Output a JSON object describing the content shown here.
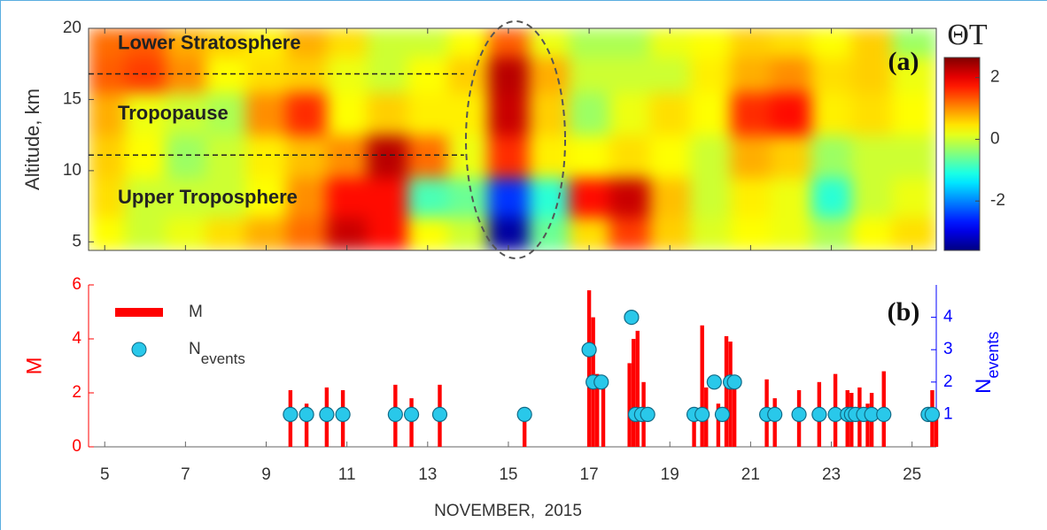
{
  "chart_data": [
    {
      "type": "heatmap",
      "ylabel": "Altitude, km",
      "colorbar_title": "ΘT",
      "panel_label": "(a)",
      "annotations": [
        "Lower Stratosphere",
        "Tropopause",
        "Upper Troposphere"
      ],
      "boundaries": [
        16.8,
        11.1
      ],
      "boundary_xlim": [
        4.6,
        13.9
      ],
      "xlim": [
        4.6,
        25.6
      ],
      "xticks": [
        5,
        7,
        9,
        11,
        13,
        15,
        17,
        19,
        21,
        23,
        25
      ],
      "ylim": [
        4.4,
        20
      ],
      "yticks": [
        5,
        10,
        15,
        20
      ],
      "clim": [
        -3.6,
        2.65
      ],
      "cticks": [
        -2,
        0,
        2
      ],
      "colormap": "jet",
      "x": [
        5,
        6,
        7,
        8,
        9,
        10,
        11,
        12,
        13,
        14,
        15,
        16,
        17,
        18,
        19,
        20,
        21,
        22,
        23,
        24,
        25
      ],
      "y": [
        5.5,
        8,
        11,
        14,
        17,
        19
      ],
      "z": [
        [
          0.3,
          0,
          0.2,
          0.5,
          0.8,
          1.2,
          2.2,
          1.8,
          0.3,
          0,
          -3.4,
          -0.6,
          0.5,
          1.5,
          0.6,
          0.1,
          0.3,
          0.2,
          -0.2,
          0.3,
          0.5
        ],
        [
          0.5,
          0,
          0,
          0,
          0.3,
          1.0,
          1.8,
          1.8,
          -0.8,
          -0.6,
          -2.5,
          -1.0,
          1.8,
          2.2,
          0.7,
          0,
          0.4,
          0.2,
          -1.0,
          0,
          0.2
        ],
        [
          0.6,
          0.3,
          -0.3,
          0,
          0.4,
          0.7,
          1.0,
          2.3,
          1.2,
          0.2,
          1.6,
          0.4,
          0.3,
          0.5,
          0.3,
          0,
          0.8,
          0.6,
          -0.3,
          0,
          0
        ],
        [
          0.8,
          0.2,
          0,
          -0.2,
          1.0,
          1.6,
          0.3,
          0.6,
          0.4,
          0.4,
          2.2,
          0.6,
          -0.3,
          0.2,
          0.5,
          0.3,
          1.6,
          1.8,
          0.4,
          0.5,
          0.3
        ],
        [
          1.3,
          1.5,
          1,
          0.3,
          0.5,
          0.6,
          0.2,
          0,
          0.3,
          0.6,
          2.3,
          0.8,
          0,
          0,
          0,
          0.4,
          0.8,
          1.0,
          0.5,
          0.6,
          0.2
        ],
        [
          1.2,
          1.3,
          0.8,
          0.6,
          0.4,
          0.8,
          0.5,
          0,
          0,
          0.3,
          1.3,
          0.2,
          -0.2,
          -0.2,
          0.2,
          0.3,
          0.6,
          0.5,
          0.3,
          0.6,
          -0.3
        ]
      ]
    },
    {
      "type": "bar",
      "xlabel": "NOVEMBER,  2015",
      "ylabel": "M",
      "y2label": "N",
      "y2label_sub": "events",
      "panel_label": "(b)",
      "xlim": [
        4.6,
        25.6
      ],
      "xticks": [
        5,
        7,
        9,
        11,
        13,
        15,
        17,
        19,
        21,
        23,
        25
      ],
      "ylim": [
        0,
        6
      ],
      "yticks": [
        0,
        2,
        4,
        6
      ],
      "y2lim": [
        0,
        5
      ],
      "y2ticks": [
        1,
        2,
        3,
        4
      ],
      "series": [
        {
          "name": "M",
          "type": "bar",
          "color": "#ff0000",
          "x": [
            9.6,
            10.0,
            10.5,
            10.9,
            12.2,
            12.6,
            13.3,
            15.4,
            17.0,
            17.1,
            17.2,
            17.35,
            18.0,
            18.1,
            18.2,
            18.35,
            19.6,
            19.8,
            19.9,
            20.2,
            20.4,
            20.5,
            20.6,
            21.4,
            21.6,
            22.2,
            22.7,
            23.1,
            23.4,
            23.5,
            23.7,
            23.9,
            24.0,
            24.3,
            25.5,
            25.6
          ],
          "values": [
            2.1,
            1.6,
            2.2,
            2.1,
            2.3,
            1.8,
            2.3,
            1.2,
            5.8,
            4.8,
            2.7,
            2.5,
            3.1,
            4.0,
            4.3,
            2.4,
            1.2,
            4.5,
            2.2,
            1.6,
            4.1,
            3.9,
            2.3,
            2.5,
            1.8,
            2.1,
            2.4,
            2.7,
            2.1,
            2.0,
            2.2,
            1.6,
            2.0,
            2.8,
            2.1,
            1.2
          ]
        },
        {
          "name": "N",
          "name_sub": "events",
          "type": "scatter",
          "axis": "y2",
          "color": "#29c8ea",
          "x": [
            9.6,
            10.0,
            10.5,
            10.9,
            12.2,
            12.6,
            13.3,
            15.4,
            17.0,
            17.1,
            17.3,
            18.05,
            18.15,
            18.3,
            18.45,
            19.6,
            19.8,
            20.1,
            20.3,
            20.5,
            20.6,
            21.4,
            21.6,
            22.2,
            22.7,
            23.1,
            23.4,
            23.5,
            23.6,
            23.8,
            24.0,
            24.3,
            25.4,
            25.5
          ],
          "values": [
            1,
            1,
            1,
            1,
            1,
            1,
            1,
            1,
            3,
            2,
            2,
            4,
            1,
            1,
            1,
            1,
            1,
            2,
            1,
            2,
            2,
            1,
            1,
            1,
            1,
            1,
            1,
            1,
            1,
            1,
            1,
            1,
            1,
            1
          ]
        }
      ]
    }
  ]
}
